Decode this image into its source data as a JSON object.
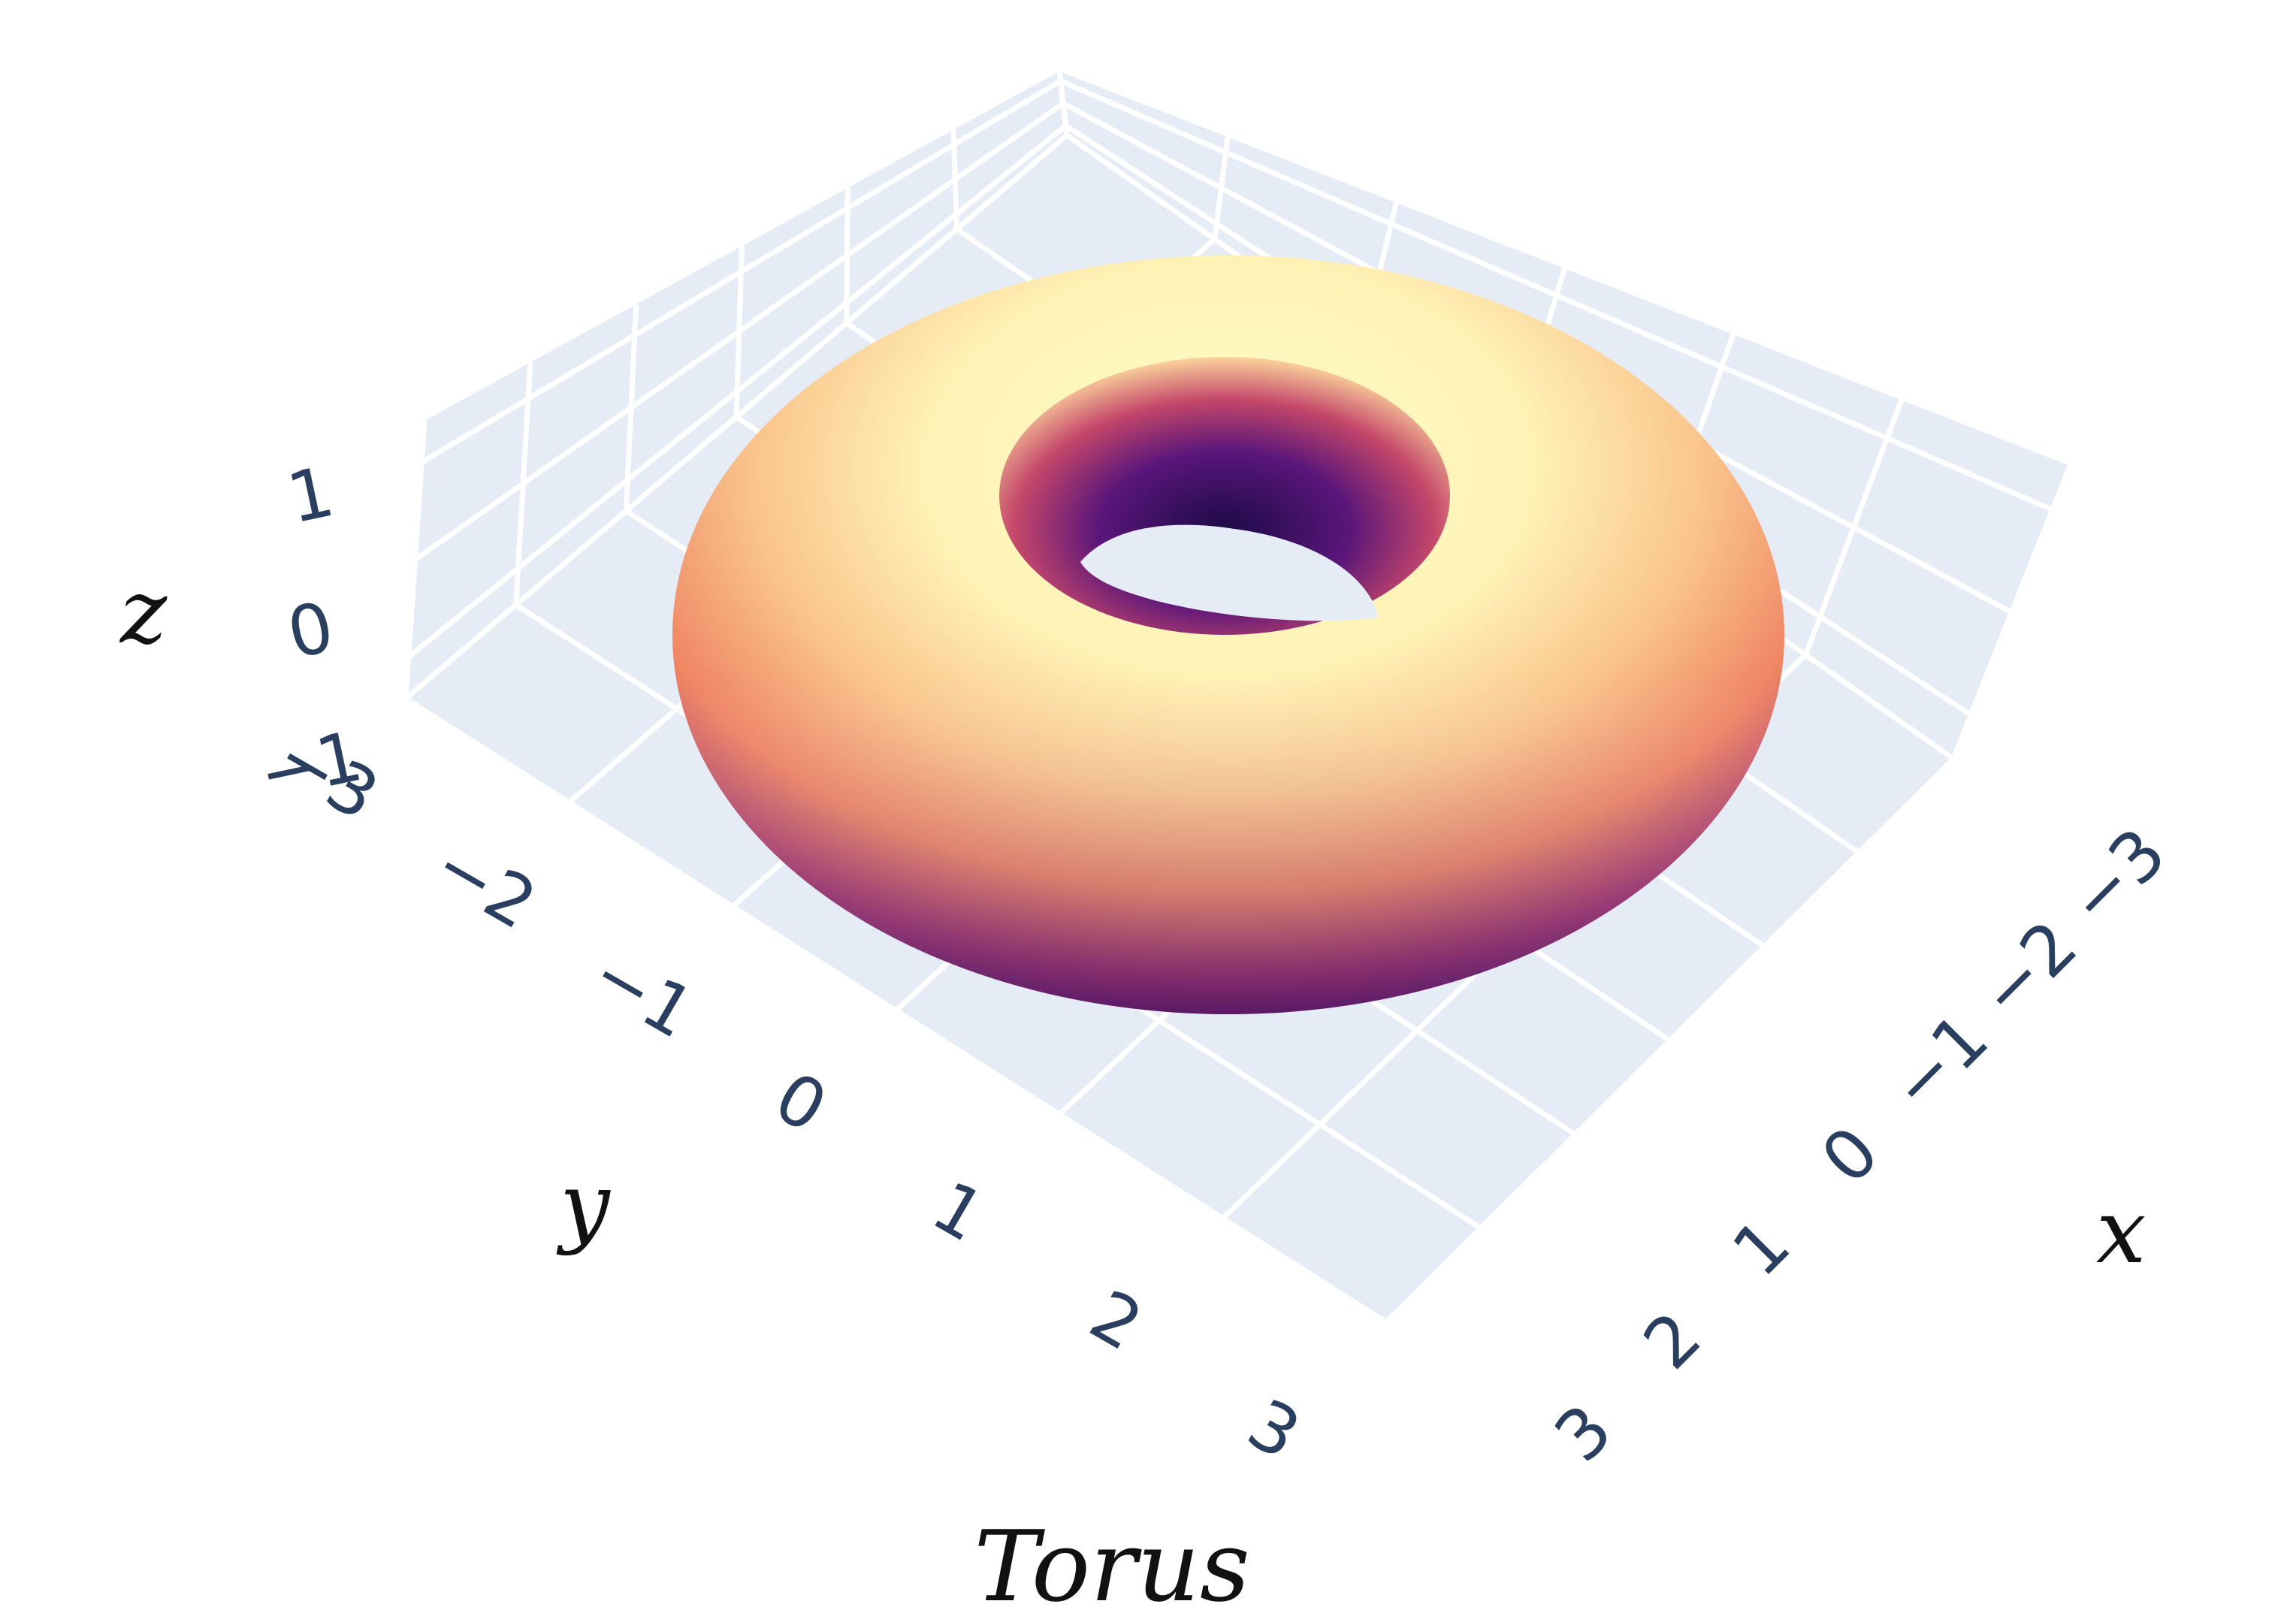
{
  "chart_data": {
    "type": "surface",
    "title": "Torus",
    "xlabel": "x",
    "ylabel": "y",
    "zlabel": "z",
    "x_ticks": [
      "−3",
      "−2",
      "−1",
      "0",
      "1",
      "2",
      "3"
    ],
    "y_ticks": [
      "−3",
      "−2",
      "−1",
      "0",
      "1",
      "2",
      "3"
    ],
    "z_ticks": [
      "−1",
      "0",
      "1"
    ],
    "xlim": [
      -3,
      3
    ],
    "ylim": [
      -3,
      3
    ],
    "zlim": [
      -1,
      1
    ],
    "surface": {
      "shape": "torus",
      "major_radius": 2,
      "minor_radius": 1,
      "colorscale": "magma"
    },
    "grid": true,
    "colors": {
      "pane": "#e5ecf6",
      "grid": "#ffffff",
      "tick": "#2a3f5f",
      "torus_light": "#fffdc8",
      "torus_mid": "#f6a06c",
      "torus_dark": "#3b0f6f"
    }
  }
}
